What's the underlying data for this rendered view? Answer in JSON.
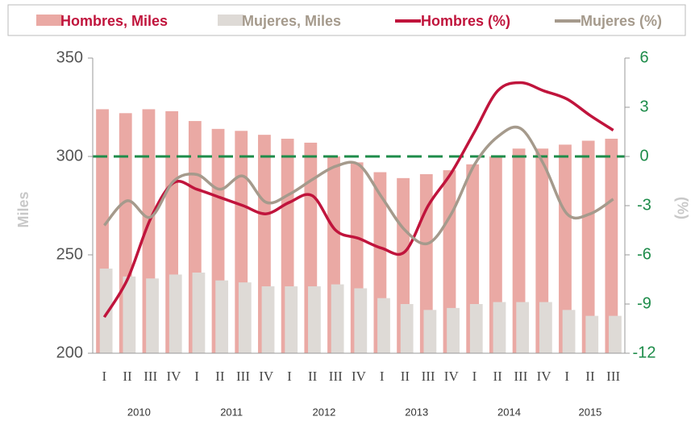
{
  "chart_data": {
    "type": "bar-line",
    "categories": [
      "I",
      "II",
      "III",
      "IV",
      "I",
      "II",
      "III",
      "IV",
      "I",
      "II",
      "III",
      "IV",
      "I",
      "II",
      "III",
      "IV",
      "I",
      "II",
      "III",
      "IV",
      "I",
      "II",
      "III"
    ],
    "years": [
      "2010",
      "2011",
      "2012",
      "2013",
      "2014",
      "2015"
    ],
    "ylabel": "Miles",
    "y2label": "(%)",
    "ylim": [
      200,
      350
    ],
    "yticks": [
      200,
      250,
      300,
      350
    ],
    "y2lim": [
      -12,
      6
    ],
    "y2ticks": [
      -12,
      -9,
      -6,
      -3,
      0,
      3,
      6
    ],
    "series": [
      {
        "name": "Hombres, Miles",
        "type": "bar",
        "color": "#eaa9a4",
        "values": [
          324,
          322,
          324,
          323,
          318,
          314,
          313,
          311,
          309,
          307,
          300,
          297,
          292,
          289,
          291,
          293,
          296,
          300,
          304,
          304,
          306,
          308,
          309
        ]
      },
      {
        "name": "Mujeres, Miles",
        "type": "bar",
        "color": "#dedad6",
        "values": [
          243,
          239,
          238,
          240,
          241,
          237,
          236,
          234,
          234,
          234,
          235,
          233,
          228,
          225,
          222,
          223,
          225,
          226,
          226,
          226,
          222,
          219,
          219
        ]
      },
      {
        "name": "Hombres (%)",
        "type": "line",
        "axis": "y2",
        "color": "#c0143c",
        "values": [
          -9.8,
          -7.5,
          -3.8,
          -1.6,
          -2.0,
          -2.5,
          -3.0,
          -3.5,
          -2.8,
          -2.4,
          -4.5,
          -5.0,
          -5.6,
          -5.8,
          -3.0,
          -1.0,
          1.5,
          4.0,
          4.5,
          4.0,
          3.5,
          2.5,
          1.6
        ]
      },
      {
        "name": "Mujeres (%)",
        "type": "line",
        "axis": "y2",
        "color": "#a59a8c",
        "values": [
          -4.2,
          -2.7,
          -3.7,
          -1.5,
          -1.1,
          -2.0,
          -1.2,
          -2.8,
          -2.3,
          -1.4,
          -0.6,
          -0.5,
          -2.5,
          -4.5,
          -5.3,
          -3.5,
          -0.5,
          1.2,
          1.7,
          -0.5,
          -3.5,
          -3.5,
          -2.6
        ]
      }
    ],
    "zero_line_color": "#1e8c4a"
  }
}
